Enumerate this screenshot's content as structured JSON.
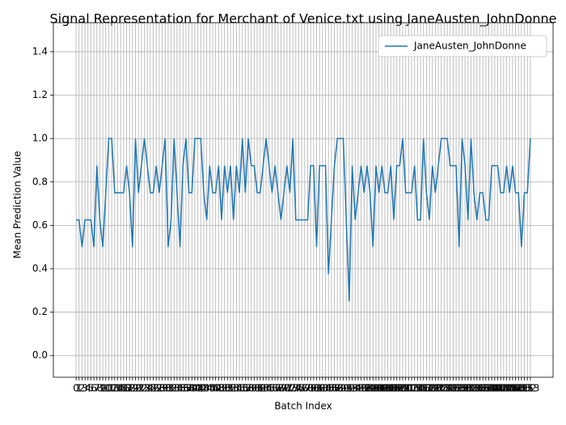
{
  "chart_data": {
    "type": "line",
    "title": "Signal Representation for Merchant of Venice.txt using JaneAusten_JohnDonne",
    "x_label": "Batch Index",
    "y_label": "Mean Prediction Value",
    "x": [
      0,
      1,
      2,
      3,
      4,
      5,
      6,
      7,
      8,
      9,
      10,
      11,
      12,
      13,
      14,
      15,
      16,
      17,
      18,
      19,
      20,
      21,
      22,
      23,
      24,
      25,
      26,
      27,
      28,
      29,
      30,
      31,
      32,
      33,
      34,
      35,
      36,
      37,
      38,
      39,
      40,
      41,
      42,
      43,
      44,
      45,
      46,
      47,
      48,
      49,
      50,
      51,
      52,
      53,
      54,
      55,
      56,
      57,
      58,
      59,
      60,
      61,
      62,
      63,
      64,
      65,
      66,
      67,
      68,
      69,
      70,
      71,
      72,
      73,
      74,
      75,
      76,
      77,
      78,
      79,
      80,
      81,
      82,
      83,
      84,
      85,
      86,
      87,
      88,
      89,
      90,
      91,
      92,
      93,
      94,
      95,
      96,
      97,
      98,
      99,
      100,
      101,
      102,
      103,
      104,
      105,
      106,
      107,
      108,
      109,
      110,
      111,
      112,
      113,
      114,
      115,
      116,
      117,
      118,
      119,
      120,
      121,
      122,
      123,
      124,
      125,
      126,
      127,
      128,
      129,
      130,
      131,
      132,
      133,
      134,
      135,
      136,
      137,
      138,
      139,
      140,
      141,
      142,
      143,
      144,
      145,
      146,
      147,
      148,
      149,
      150,
      151,
      152,
      153
    ],
    "series": [
      {
        "name": "JaneAusten_JohnDonne",
        "color": "#1f77b4",
        "values": [
          0.625,
          0.625,
          0.5,
          0.625,
          0.625,
          0.625,
          0.5,
          0.875,
          0.625,
          0.5,
          0.75,
          1.0,
          1.0,
          0.75,
          0.75,
          0.75,
          0.75,
          0.875,
          0.75,
          0.5,
          1.0,
          0.75,
          0.875,
          1.0,
          0.875,
          0.75,
          0.75,
          0.875,
          0.75,
          0.875,
          1.0,
          0.5,
          0.625,
          1.0,
          0.75,
          0.5,
          0.875,
          1.0,
          0.75,
          0.75,
          1.0,
          1.0,
          1.0,
          0.75,
          0.625,
          0.875,
          0.75,
          0.75,
          0.875,
          0.625,
          0.875,
          0.75,
          0.875,
          0.625,
          0.875,
          0.75,
          1.0,
          0.75,
          1.0,
          0.875,
          0.875,
          0.75,
          0.75,
          0.875,
          1.0,
          0.875,
          0.75,
          0.875,
          0.75,
          0.625,
          0.75,
          0.875,
          0.75,
          1.0,
          0.625,
          0.625,
          0.625,
          0.625,
          0.625,
          0.875,
          0.875,
          0.5,
          0.875,
          0.875,
          0.875,
          0.375,
          0.625,
          0.875,
          1.0,
          1.0,
          1.0,
          0.625,
          0.25,
          0.875,
          0.625,
          0.75,
          0.875,
          0.75,
          0.875,
          0.75,
          0.5,
          0.875,
          0.75,
          0.875,
          0.75,
          0.75,
          0.875,
          0.625,
          0.875,
          0.875,
          1.0,
          0.75,
          0.75,
          0.75,
          0.875,
          0.625,
          0.625,
          1.0,
          0.75,
          0.625,
          0.875,
          0.75,
          0.875,
          1.0,
          1.0,
          1.0,
          0.875,
          0.875,
          0.875,
          0.5,
          1.0,
          0.875,
          0.625,
          1.0,
          0.75,
          0.625,
          0.75,
          0.75,
          0.625,
          0.625,
          0.875,
          0.875,
          0.875,
          0.75,
          0.75,
          0.875,
          0.75,
          0.875,
          0.75,
          0.75,
          0.5,
          0.75,
          0.75,
          1.0
        ]
      }
    ],
    "xlim": [
      -7.65,
      160.65
    ],
    "xticks": [
      0,
      1,
      2,
      3,
      4,
      5,
      6,
      7,
      8,
      9,
      10,
      11,
      12,
      13,
      14,
      15,
      16,
      17,
      18,
      19,
      20,
      21,
      22,
      23,
      24,
      25,
      26,
      27,
      28,
      29,
      30,
      31,
      32,
      33,
      34,
      35,
      36,
      37,
      38,
      39,
      40,
      41,
      42,
      43,
      44,
      45,
      46,
      47,
      48,
      49,
      50,
      51,
      52,
      53,
      54,
      55,
      56,
      57,
      58,
      59,
      60,
      61,
      62,
      63,
      64,
      65,
      66,
      67,
      68,
      69,
      70,
      71,
      72,
      73,
      74,
      75,
      76,
      77,
      78,
      79,
      80,
      81,
      82,
      83,
      84,
      85,
      86,
      87,
      88,
      89,
      90,
      91,
      92,
      93,
      94,
      95,
      96,
      97,
      98,
      99,
      100,
      101,
      102,
      103,
      104,
      105,
      106,
      107,
      108,
      109,
      110,
      111,
      112,
      113,
      114,
      115,
      116,
      117,
      118,
      119,
      120,
      121,
      122,
      123,
      124,
      125,
      126,
      127,
      128,
      129,
      130,
      131,
      132,
      133,
      134,
      135,
      136,
      137,
      138,
      139,
      140,
      141,
      142,
      143,
      144,
      145,
      146,
      147,
      148,
      149,
      150,
      151,
      152,
      153
    ],
    "ylim": [
      -0.1,
      1.534
    ],
    "yticks": [
      {
        "value": 0,
        "label": "0.0"
      },
      0.2,
      0.4,
      0.6,
      0.8,
      {
        "value": 1,
        "label": "1.0"
      },
      1.2,
      1.4
    ],
    "grid": true,
    "legend": "upper right"
  }
}
